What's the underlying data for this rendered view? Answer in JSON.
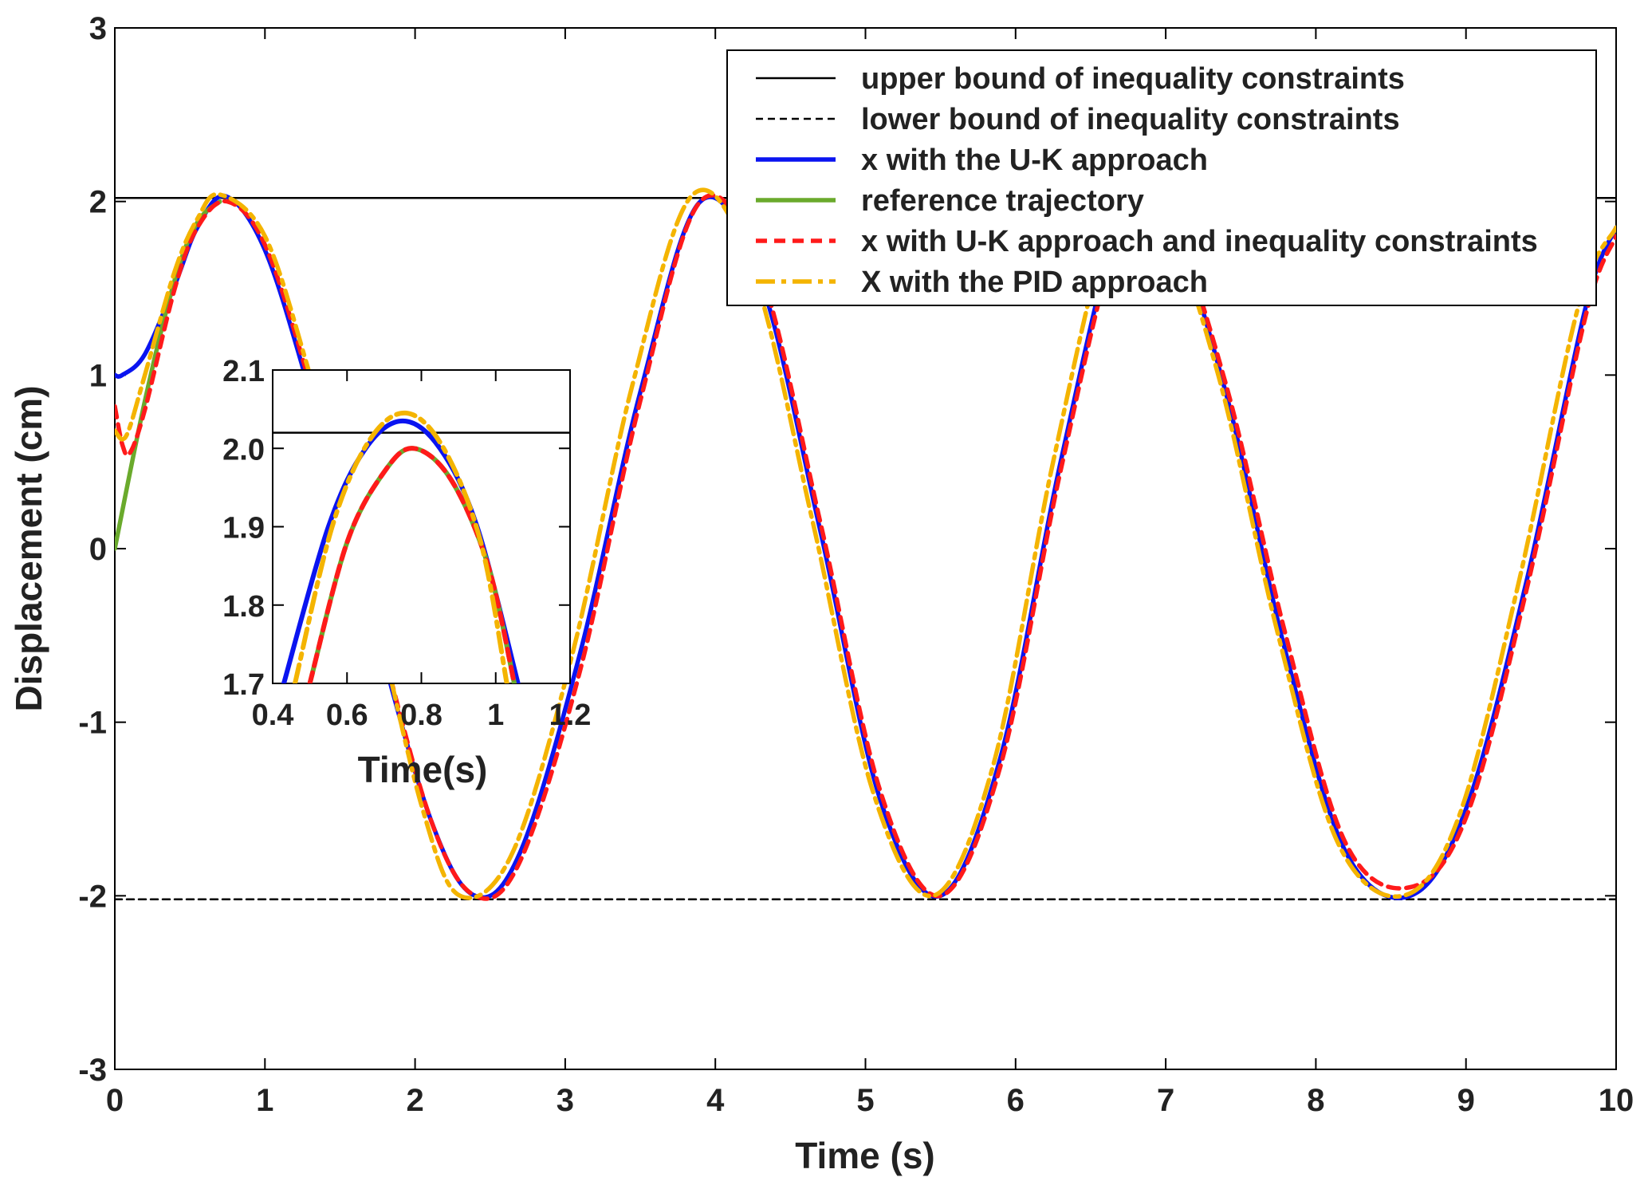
{
  "chart_data": [
    {
      "id": "main",
      "type": "line",
      "xlabel": "Time (s)",
      "ylabel": "Displacement (cm)",
      "xlim": [
        0,
        10
      ],
      "ylim": [
        -3,
        3
      ],
      "xticks": [
        "0",
        "1",
        "2",
        "3",
        "4",
        "5",
        "6",
        "7",
        "8",
        "9",
        "10"
      ],
      "yticks": [
        "-3",
        "-2",
        "-1",
        "0",
        "1",
        "2",
        "3"
      ],
      "grid": false,
      "legend_position": "top-right",
      "series": [
        {
          "name": "upper bound of inequality constraints",
          "color": "#000000",
          "style": "solid",
          "x": [
            0,
            10
          ],
          "y": [
            2.02,
            2.02
          ]
        },
        {
          "name": "lower bound of inequality constraints",
          "color": "#000000",
          "style": "dashed",
          "x": [
            0,
            10
          ],
          "y": [
            -2.02,
            -2.02
          ]
        },
        {
          "name": "x with the U-K approach",
          "color": "#0a14f0",
          "style": "solid",
          "x": [
            0,
            0.05,
            0.2,
            0.4,
            0.55,
            0.74,
            1.0,
            1.3,
            1.7,
            2.1,
            2.4,
            2.7,
            3.1,
            3.5,
            3.9,
            4.3,
            4.7,
            5.1,
            5.5,
            5.9,
            6.3,
            6.7,
            7.0,
            7.4,
            7.8,
            8.2,
            8.63,
            9.0,
            9.4,
            9.8,
            10.0
          ],
          "y": [
            1.0,
            1.0,
            1.12,
            1.52,
            1.85,
            2.03,
            1.72,
            0.9,
            -0.35,
            -1.55,
            -2.0,
            -1.75,
            -0.6,
            0.9,
            2.0,
            1.55,
            0.1,
            -1.45,
            -2.0,
            -1.2,
            0.5,
            1.9,
            1.95,
            0.9,
            -0.6,
            -1.75,
            -2.0,
            -1.5,
            -0.2,
            1.4,
            1.85
          ]
        },
        {
          "name": "reference trajectory",
          "color": "#6aaa2c",
          "style": "solid",
          "x": [
            0,
            0.2,
            0.4,
            0.55,
            0.7
          ],
          "y": [
            0.0,
            0.85,
            1.55,
            1.88,
            2.0
          ]
        },
        {
          "name": "x with U-K approach and inequality constraints",
          "color": "#ff1a1a",
          "style": "dashed",
          "x": [
            0,
            0.05,
            0.1,
            0.2,
            0.4,
            0.55,
            0.75,
            1.0,
            1.3,
            1.7,
            2.1,
            2.4,
            2.7,
            3.1,
            3.5,
            3.9,
            4.3,
            4.7,
            5.1,
            5.5,
            5.9,
            6.3,
            6.7,
            7.0,
            7.4,
            7.8,
            8.2,
            8.63,
            9.0,
            9.4,
            9.8,
            10.0
          ],
          "y": [
            0.82,
            0.6,
            0.55,
            0.8,
            1.5,
            1.85,
            2.0,
            1.75,
            0.95,
            -0.3,
            -1.55,
            -2.0,
            -1.8,
            -0.7,
            0.85,
            2.0,
            1.6,
            0.15,
            -1.4,
            -2.0,
            -1.25,
            0.45,
            1.85,
            1.95,
            0.95,
            -0.5,
            -1.7,
            -1.95,
            -1.55,
            -0.25,
            1.35,
            1.8
          ]
        },
        {
          "name": "X with the PID approach",
          "color": "#f4b400",
          "style": "dashdot",
          "x": [
            0,
            0.05,
            0.1,
            0.2,
            0.4,
            0.55,
            0.7,
            1.0,
            1.3,
            1.7,
            2.05,
            2.3,
            2.65,
            3.05,
            3.45,
            3.85,
            4.25,
            4.65,
            5.05,
            5.45,
            5.85,
            6.25,
            6.65,
            6.95,
            7.35,
            7.75,
            8.15,
            8.58,
            8.95,
            9.35,
            9.75,
            10.0
          ],
          "y": [
            0.68,
            0.63,
            0.7,
            1.0,
            1.6,
            1.9,
            2.04,
            1.8,
            1.0,
            -0.25,
            -1.5,
            -2.0,
            -1.75,
            -0.6,
            0.95,
            2.04,
            1.6,
            0.15,
            -1.4,
            -2.0,
            -1.25,
            0.5,
            1.92,
            2.0,
            1.0,
            -0.5,
            -1.7,
            -2.0,
            -1.55,
            -0.2,
            1.4,
            1.85
          ]
        }
      ]
    },
    {
      "id": "inset",
      "type": "line",
      "xlabel": "Time(s)",
      "ylabel": "",
      "xlim": [
        0.4,
        1.2
      ],
      "ylim": [
        1.7,
        2.1
      ],
      "xticks": [
        "0.4",
        "0.6",
        "0.8",
        "1",
        "1.2"
      ],
      "yticks": [
        "1.7",
        "1.8",
        "1.9",
        "2.0",
        "2.1"
      ],
      "series": [
        {
          "name": "upper bound of inequality constraints",
          "color": "#000000",
          "style": "solid",
          "x": [
            0.4,
            1.2
          ],
          "y": [
            2.02,
            2.02
          ]
        },
        {
          "name": "x with the U-K approach",
          "color": "#0a14f0",
          "style": "solid",
          "x": [
            0.43,
            0.55,
            0.65,
            0.75,
            0.85,
            0.95,
            1.06
          ],
          "y": [
            1.7,
            1.9,
            2.0,
            2.035,
            2.0,
            1.9,
            1.7
          ]
        },
        {
          "name": "reference trajectory",
          "color": "#6aaa2c",
          "style": "solid",
          "x": [
            0.5,
            0.6,
            0.7,
            0.78,
            0.88,
            0.98,
            1.05
          ],
          "y": [
            1.7,
            1.88,
            1.97,
            2.0,
            1.96,
            1.85,
            1.7
          ]
        },
        {
          "name": "x with U-K approach and inequality constraints",
          "color": "#ff1a1a",
          "style": "dashed",
          "x": [
            0.5,
            0.6,
            0.7,
            0.78,
            0.88,
            0.98,
            1.05
          ],
          "y": [
            1.7,
            1.88,
            1.97,
            2.0,
            1.96,
            1.85,
            1.7
          ]
        },
        {
          "name": "X with the PID approach",
          "color": "#f4b400",
          "style": "dashdot",
          "x": [
            0.46,
            0.56,
            0.66,
            0.76,
            0.86,
            0.96,
            1.03
          ],
          "y": [
            1.7,
            1.9,
            2.01,
            2.045,
            2.0,
            1.88,
            1.7
          ]
        }
      ]
    }
  ]
}
